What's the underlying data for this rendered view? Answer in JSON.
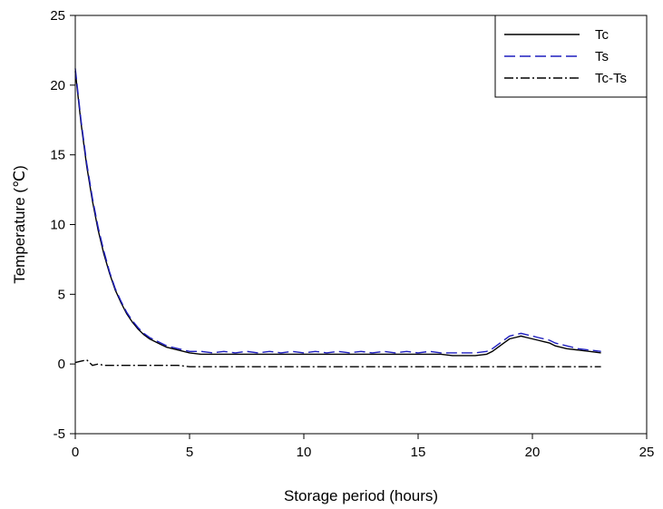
{
  "chart_data": {
    "type": "line",
    "title": "",
    "xlabel": "Storage period (hours)",
    "ylabel": "Temperature (℃)",
    "xlim": [
      0,
      25
    ],
    "ylim": [
      -5,
      25
    ],
    "xticks": [
      0,
      5,
      10,
      15,
      20,
      25
    ],
    "yticks": [
      -5,
      0,
      5,
      10,
      15,
      20,
      25
    ],
    "xtick_labels": [
      "0",
      "5",
      "10",
      "15",
      "20",
      "25"
    ],
    "ytick_labels": [
      "-5",
      "0",
      "5",
      "10",
      "15",
      "20",
      "25"
    ],
    "grid": false,
    "legend_position": "top-right",
    "x": [
      0,
      0.25,
      0.5,
      0.75,
      1,
      1.25,
      1.5,
      1.75,
      2,
      2.25,
      2.5,
      2.75,
      3,
      3.25,
      3.5,
      3.75,
      4,
      4.5,
      5,
      5.5,
      6,
      6.5,
      7,
      7.5,
      8,
      8.5,
      9,
      9.5,
      10,
      10.5,
      11,
      11.5,
      12,
      12.5,
      13,
      13.5,
      14,
      14.5,
      15,
      15.5,
      16,
      16.5,
      17,
      17.5,
      18,
      18.25,
      18.5,
      18.75,
      19,
      19.25,
      19.5,
      19.75,
      20,
      20.25,
      20.5,
      20.75,
      21,
      21.5,
      22,
      22.5,
      23
    ],
    "series": [
      {
        "name": "Tc",
        "color": "#000000",
        "dash": "solid",
        "values": [
          21.0,
          17.3,
          14.2,
          11.7,
          9.6,
          7.9,
          6.5,
          5.3,
          4.4,
          3.6,
          3.0,
          2.5,
          2.1,
          1.8,
          1.6,
          1.4,
          1.2,
          1.0,
          0.8,
          0.7,
          0.7,
          0.7,
          0.7,
          0.7,
          0.7,
          0.7,
          0.7,
          0.7,
          0.7,
          0.7,
          0.7,
          0.7,
          0.7,
          0.7,
          0.7,
          0.7,
          0.7,
          0.7,
          0.7,
          0.7,
          0.7,
          0.6,
          0.6,
          0.6,
          0.7,
          0.9,
          1.2,
          1.5,
          1.8,
          1.9,
          2.0,
          1.9,
          1.8,
          1.7,
          1.6,
          1.5,
          1.3,
          1.1,
          1.0,
          0.9,
          0.8
        ]
      },
      {
        "name": "Ts",
        "color": "#1f1fbf",
        "dash": "dashed",
        "values": [
          21.2,
          17.5,
          14.4,
          11.9,
          9.8,
          8.1,
          6.6,
          5.4,
          4.5,
          3.7,
          3.1,
          2.6,
          2.2,
          1.9,
          1.7,
          1.5,
          1.3,
          1.1,
          0.9,
          0.9,
          0.8,
          0.9,
          0.8,
          0.9,
          0.8,
          0.9,
          0.8,
          0.9,
          0.8,
          0.9,
          0.8,
          0.9,
          0.8,
          0.9,
          0.8,
          0.9,
          0.8,
          0.9,
          0.8,
          0.9,
          0.8,
          0.8,
          0.8,
          0.8,
          0.9,
          1.1,
          1.4,
          1.7,
          2.0,
          2.1,
          2.2,
          2.1,
          2.0,
          1.9,
          1.8,
          1.7,
          1.5,
          1.3,
          1.1,
          1.0,
          0.9
        ]
      },
      {
        "name": "Tc-Ts",
        "color": "#000000",
        "dash": "dashdot",
        "values": [
          0.1,
          0.2,
          0.3,
          -0.1,
          0.0,
          -0.1,
          -0.1,
          -0.1,
          -0.1,
          -0.1,
          -0.1,
          -0.1,
          -0.1,
          -0.1,
          -0.1,
          -0.1,
          -0.1,
          -0.1,
          -0.2,
          -0.2,
          -0.2,
          -0.2,
          -0.2,
          -0.2,
          -0.2,
          -0.2,
          -0.2,
          -0.2,
          -0.2,
          -0.2,
          -0.2,
          -0.2,
          -0.2,
          -0.2,
          -0.2,
          -0.2,
          -0.2,
          -0.2,
          -0.2,
          -0.2,
          -0.2,
          -0.2,
          -0.2,
          -0.2,
          -0.2,
          -0.2,
          -0.2,
          -0.2,
          -0.2,
          -0.2,
          -0.2,
          -0.2,
          -0.2,
          -0.2,
          -0.2,
          -0.2,
          -0.2,
          -0.2,
          -0.2,
          -0.2,
          -0.2
        ]
      }
    ]
  }
}
